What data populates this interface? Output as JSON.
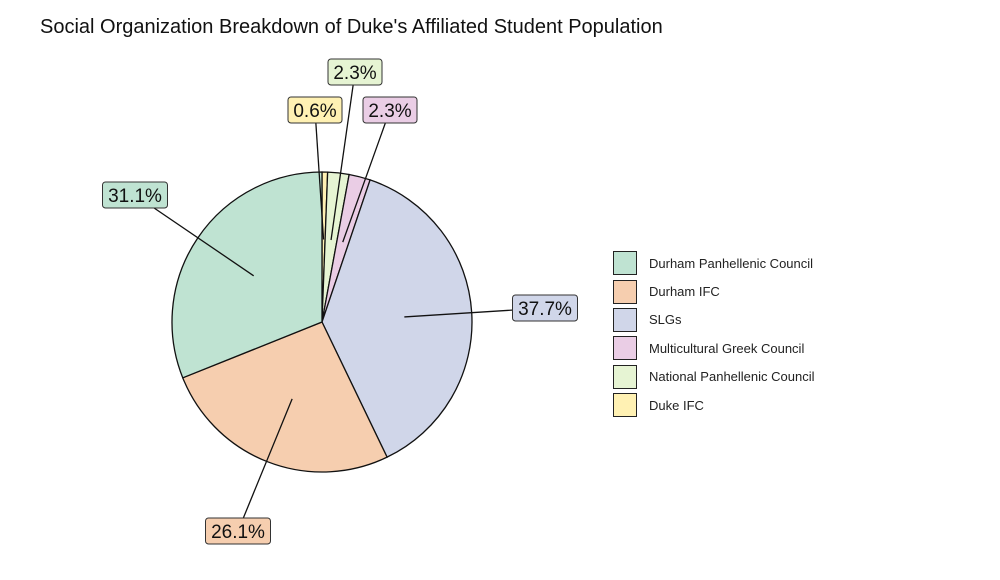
{
  "chart_data": {
    "type": "pie",
    "title": "Social Organization Breakdown of Duke's Affiliated Student Population",
    "slices": [
      {
        "name": "Duke IFC",
        "value": 0.6,
        "label": "0.6%",
        "color": "#FFF1B3"
      },
      {
        "name": "National Panhellenic Council",
        "value": 2.3,
        "label": "2.3%",
        "color": "#E6F4D3"
      },
      {
        "name": "Multicultural Greek Council",
        "value": 2.3,
        "label": "2.3%",
        "color": "#EACDE5"
      },
      {
        "name": "SLGs",
        "value": 37.7,
        "label": "37.7%",
        "color": "#D0D6E9"
      },
      {
        "name": "Durham IFC",
        "value": 26.1,
        "label": "26.1%",
        "color": "#F6CEAF"
      },
      {
        "name": "Durham Panhellenic Council",
        "value": 31.1,
        "label": "31.1%",
        "color": "#BFE3D2"
      }
    ],
    "legend": [
      "Durham Panhellenic Council",
      "Durham IFC",
      "SLGs",
      "Multicultural Greek Council",
      "National Panhellenic Council",
      "Duke IFC"
    ],
    "legend_placement": "right",
    "start": "top",
    "direction": "clockwise"
  }
}
